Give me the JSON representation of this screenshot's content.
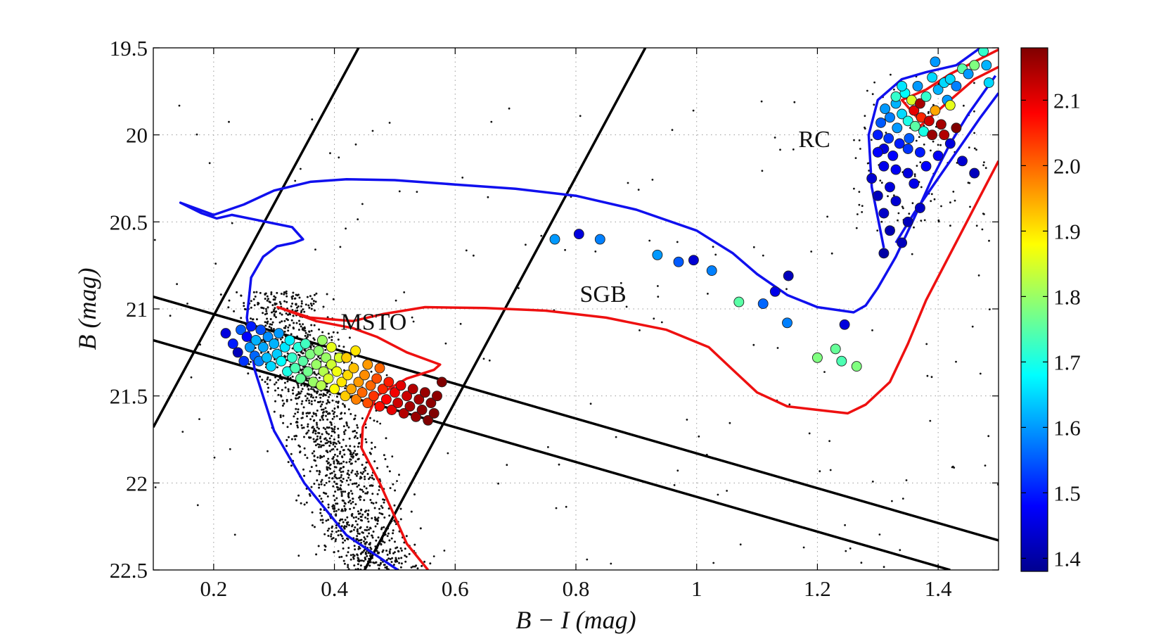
{
  "chart_data": {
    "type": "scatter",
    "title": "",
    "xlabel": "B − I (mag)",
    "ylabel": "B (mag)",
    "xlim": [
      0.1,
      1.5
    ],
    "ylim": [
      22.5,
      19.5
    ],
    "y_inverted": true,
    "grid": "dotted",
    "x_ticks": [
      {
        "value": 0.2,
        "label": "0.2"
      },
      {
        "value": 0.4,
        "label": "0.4"
      },
      {
        "value": 0.6,
        "label": "0.6"
      },
      {
        "value": 0.8,
        "label": "0.8"
      },
      {
        "value": 1.0,
        "label": "1"
      },
      {
        "value": 1.2,
        "label": "1.2"
      },
      {
        "value": 1.4,
        "label": "1.4"
      }
    ],
    "y_ticks": [
      {
        "value": 19.5,
        "label": "19.5"
      },
      {
        "value": 20.0,
        "label": "20"
      },
      {
        "value": 20.5,
        "label": "20.5"
      },
      {
        "value": 21.0,
        "label": "21"
      },
      {
        "value": 21.5,
        "label": "21.5"
      },
      {
        "value": 22.0,
        "label": "22"
      },
      {
        "value": 22.5,
        "label": "22.5"
      }
    ],
    "colorbar": {
      "range": [
        1.38,
        2.18
      ],
      "ticks": [
        {
          "value": 1.4,
          "label": "1.4"
        },
        {
          "value": 1.5,
          "label": "1.5"
        },
        {
          "value": 1.6,
          "label": "1.6"
        },
        {
          "value": 1.7,
          "label": "1.7"
        },
        {
          "value": 1.8,
          "label": "1.8"
        },
        {
          "value": 1.9,
          "label": "1.9"
        },
        {
          "value": 2.0,
          "label": "2.0"
        },
        {
          "value": 2.1,
          "label": "2.1"
        }
      ],
      "colormap": [
        "#00008f",
        "#0000ff",
        "#0080ff",
        "#00ffff",
        "#80ff80",
        "#ffff00",
        "#ff8000",
        "#ff0000",
        "#800000"
      ]
    },
    "annotations": [
      {
        "text": "MSTO",
        "x": 0.465,
        "y": 21.12
      },
      {
        "text": "SGB",
        "x": 0.845,
        "y": 20.96
      },
      {
        "text": "RC",
        "x": 1.195,
        "y": 20.07
      }
    ],
    "isochrones": [
      {
        "name": "blue",
        "color": "#1010ee",
        "points": [
          [
            0.505,
            22.5
          ],
          [
            0.42,
            22.3
          ],
          [
            0.35,
            22.0
          ],
          [
            0.3,
            21.7
          ],
          [
            0.268,
            21.35
          ],
          [
            0.255,
            21.05
          ],
          [
            0.262,
            20.82
          ],
          [
            0.282,
            20.7
          ],
          [
            0.305,
            20.64
          ],
          [
            0.333,
            20.62
          ],
          [
            0.348,
            20.6
          ],
          [
            0.33,
            20.53
          ],
          [
            0.23,
            20.46
          ],
          [
            0.205,
            20.48
          ],
          [
            0.18,
            20.45
          ],
          [
            0.145,
            20.39
          ],
          [
            0.2,
            20.46
          ],
          [
            0.25,
            20.4
          ],
          [
            0.3,
            20.32
          ],
          [
            0.36,
            20.27
          ],
          [
            0.42,
            20.255
          ],
          [
            0.5,
            20.26
          ],
          [
            0.6,
            20.285
          ],
          [
            0.7,
            20.31
          ],
          [
            0.8,
            20.35
          ],
          [
            0.9,
            20.43
          ],
          [
            1.0,
            20.55
          ],
          [
            1.06,
            20.68
          ],
          [
            1.1,
            20.8
          ],
          [
            1.15,
            20.92
          ],
          [
            1.2,
            20.99
          ],
          [
            1.26,
            21.02
          ],
          [
            1.28,
            20.98
          ],
          [
            1.3,
            20.88
          ],
          [
            1.33,
            20.7
          ],
          [
            1.36,
            20.48
          ],
          [
            1.39,
            20.25
          ],
          [
            1.42,
            20.05
          ],
          [
            1.45,
            19.88
          ],
          [
            1.495,
            19.66
          ]
        ]
      },
      {
        "name": "blue-RGB",
        "color": "#1010ee",
        "points": [
          [
            1.31,
            20.65
          ],
          [
            1.29,
            20.3
          ],
          [
            1.285,
            20.0
          ],
          [
            1.3,
            19.8
          ],
          [
            1.34,
            19.68
          ],
          [
            1.38,
            19.64
          ],
          [
            1.43,
            19.6
          ],
          [
            1.47,
            19.5
          ]
        ]
      },
      {
        "name": "blue-RGB-2",
        "color": "#1010ee",
        "points": [
          [
            1.33,
            20.62
          ],
          [
            1.36,
            20.45
          ],
          [
            1.4,
            20.25
          ],
          [
            1.44,
            20.05
          ],
          [
            1.47,
            19.9
          ],
          [
            1.5,
            19.76
          ]
        ]
      },
      {
        "name": "red",
        "color": "#ee1010",
        "points": [
          [
            0.555,
            22.5
          ],
          [
            0.52,
            22.35
          ],
          [
            0.475,
            22.0
          ],
          [
            0.445,
            21.8
          ],
          [
            0.447,
            21.68
          ],
          [
            0.47,
            21.5
          ],
          [
            0.52,
            21.4
          ],
          [
            0.565,
            21.35
          ],
          [
            0.575,
            21.32
          ],
          [
            0.52,
            21.25
          ],
          [
            0.47,
            21.16
          ],
          [
            0.43,
            21.11
          ],
          [
            0.37,
            21.07
          ],
          [
            0.306,
            20.99
          ],
          [
            0.36,
            21.05
          ],
          [
            0.43,
            21.07
          ],
          [
            0.48,
            21.03
          ],
          [
            0.55,
            20.99
          ],
          [
            0.65,
            20.995
          ],
          [
            0.75,
            21.01
          ],
          [
            0.85,
            21.05
          ],
          [
            0.95,
            21.12
          ],
          [
            1.02,
            21.22
          ],
          [
            1.06,
            21.35
          ],
          [
            1.1,
            21.48
          ],
          [
            1.15,
            21.56
          ],
          [
            1.2,
            21.58
          ],
          [
            1.25,
            21.6
          ],
          [
            1.28,
            21.55
          ],
          [
            1.32,
            21.42
          ],
          [
            1.35,
            21.2
          ],
          [
            1.38,
            20.95
          ],
          [
            1.41,
            20.75
          ],
          [
            1.44,
            20.55
          ],
          [
            1.47,
            20.35
          ],
          [
            1.5,
            20.15
          ]
        ]
      },
      {
        "name": "red-RGB",
        "color": "#ee1010",
        "points": [
          [
            1.37,
            19.92
          ],
          [
            1.34,
            19.8
          ],
          [
            1.38,
            19.74
          ],
          [
            1.42,
            19.65
          ],
          [
            1.46,
            19.58
          ],
          [
            1.5,
            19.51
          ]
        ]
      },
      {
        "name": "red-RGB-2",
        "color": "#ee1010",
        "points": [
          [
            1.37,
            19.95
          ],
          [
            1.42,
            19.8
          ],
          [
            1.46,
            19.68
          ],
          [
            1.5,
            19.61
          ]
        ]
      }
    ],
    "selection_lines": [
      {
        "name": "diag-left",
        "points": [
          [
            0.1,
            21.68
          ],
          [
            0.44,
            19.5
          ]
        ]
      },
      {
        "name": "diag-right",
        "points": [
          [
            0.45,
            22.5
          ],
          [
            0.915,
            19.5
          ]
        ]
      },
      {
        "name": "band-top",
        "points": [
          [
            0.1,
            20.93
          ],
          [
            1.5,
            22.33
          ]
        ]
      },
      {
        "name": "band-bottom",
        "points": [
          [
            0.1,
            21.18
          ],
          [
            1.42,
            22.5
          ]
        ]
      }
    ],
    "colored_stars": [
      [
        0.22,
        21.14,
        1.45
      ],
      [
        0.232,
        21.2,
        1.5
      ],
      [
        0.24,
        21.25,
        1.42
      ],
      [
        0.245,
        21.12,
        1.55
      ],
      [
        0.25,
        21.3,
        1.52
      ],
      [
        0.255,
        21.16,
        1.48
      ],
      [
        0.26,
        21.22,
        1.6
      ],
      [
        0.262,
        21.1,
        1.5
      ],
      [
        0.268,
        21.27,
        1.56
      ],
      [
        0.27,
        21.18,
        1.62
      ],
      [
        0.275,
        21.3,
        1.58
      ],
      [
        0.278,
        21.12,
        1.54
      ],
      [
        0.282,
        21.22,
        1.61
      ],
      [
        0.288,
        21.28,
        1.63
      ],
      [
        0.29,
        21.16,
        1.59
      ],
      [
        0.295,
        21.33,
        1.65
      ],
      [
        0.3,
        21.2,
        1.62
      ],
      [
        0.305,
        21.26,
        1.64
      ],
      [
        0.308,
        21.14,
        1.6
      ],
      [
        0.312,
        21.3,
        1.68
      ],
      [
        0.318,
        21.22,
        1.66
      ],
      [
        0.322,
        21.36,
        1.7
      ],
      [
        0.326,
        21.18,
        1.67
      ],
      [
        0.33,
        21.28,
        1.72
      ],
      [
        0.335,
        21.34,
        1.74
      ],
      [
        0.34,
        21.22,
        1.71
      ],
      [
        0.344,
        21.4,
        1.76
      ],
      [
        0.348,
        21.3,
        1.75
      ],
      [
        0.352,
        21.2,
        1.73
      ],
      [
        0.356,
        21.36,
        1.77
      ],
      [
        0.36,
        21.26,
        1.78
      ],
      [
        0.365,
        21.42,
        1.8
      ],
      [
        0.37,
        21.32,
        1.8
      ],
      [
        0.374,
        21.24,
        1.79
      ],
      [
        0.378,
        21.44,
        1.82
      ],
      [
        0.382,
        21.36,
        1.82
      ],
      [
        0.386,
        21.28,
        1.8
      ],
      [
        0.39,
        21.4,
        1.85
      ],
      [
        0.395,
        21.32,
        1.84
      ],
      [
        0.4,
        21.46,
        1.88
      ],
      [
        0.404,
        21.36,
        1.87
      ],
      [
        0.408,
        21.28,
        1.85
      ],
      [
        0.412,
        21.42,
        1.9
      ],
      [
        0.418,
        21.5,
        1.92
      ],
      [
        0.422,
        21.38,
        1.91
      ],
      [
        0.428,
        21.46,
        1.95
      ],
      [
        0.432,
        21.34,
        1.93
      ],
      [
        0.436,
        21.52,
        1.98
      ],
      [
        0.44,
        21.42,
        1.96
      ],
      [
        0.446,
        21.48,
        2.0
      ],
      [
        0.45,
        21.38,
        1.97
      ],
      [
        0.455,
        21.54,
        2.02
      ],
      [
        0.46,
        21.44,
        2.0
      ],
      [
        0.465,
        21.5,
        2.04
      ],
      [
        0.47,
        21.4,
        2.02
      ],
      [
        0.475,
        21.56,
        2.07
      ],
      [
        0.48,
        21.46,
        2.05
      ],
      [
        0.486,
        21.52,
        2.08
      ],
      [
        0.49,
        21.42,
        2.06
      ],
      [
        0.495,
        21.58,
        2.1
      ],
      [
        0.5,
        21.48,
        2.09
      ],
      [
        0.505,
        21.54,
        2.12
      ],
      [
        0.51,
        21.44,
        2.1
      ],
      [
        0.515,
        21.6,
        2.14
      ],
      [
        0.52,
        21.5,
        2.12
      ],
      [
        0.525,
        21.56,
        2.15
      ],
      [
        0.53,
        21.46,
        2.14
      ],
      [
        0.535,
        21.62,
        2.16
      ],
      [
        0.54,
        21.52,
        2.15
      ],
      [
        0.545,
        21.58,
        2.17
      ],
      [
        0.55,
        21.48,
        2.16
      ],
      [
        0.555,
        21.64,
        2.18
      ],
      [
        0.56,
        21.54,
        2.17
      ],
      [
        0.565,
        21.6,
        2.18
      ],
      [
        0.57,
        21.5,
        2.17
      ],
      [
        0.578,
        21.42,
        2.18
      ],
      [
        0.38,
        21.18,
        1.8
      ],
      [
        0.395,
        21.22,
        1.86
      ],
      [
        0.42,
        21.28,
        1.92
      ],
      [
        0.435,
        21.24,
        1.9
      ],
      [
        0.455,
        21.32,
        1.96
      ],
      [
        0.475,
        21.34,
        2.0
      ],
      [
        0.765,
        20.6,
        1.6
      ],
      [
        0.805,
        20.57,
        1.45
      ],
      [
        0.84,
        20.6,
        1.58
      ],
      [
        0.935,
        20.69,
        1.6
      ],
      [
        0.97,
        20.73,
        1.55
      ],
      [
        0.995,
        20.72,
        1.44
      ],
      [
        1.025,
        20.78,
        1.58
      ],
      [
        1.07,
        20.96,
        1.75
      ],
      [
        1.11,
        20.97,
        1.56
      ],
      [
        1.13,
        20.9,
        1.46
      ],
      [
        1.15,
        21.08,
        1.58
      ],
      [
        1.152,
        20.81,
        1.42
      ],
      [
        1.245,
        21.09,
        1.45
      ],
      [
        1.2,
        21.28,
        1.78
      ],
      [
        1.23,
        21.23,
        1.76
      ],
      [
        1.24,
        21.3,
        1.74
      ],
      [
        1.265,
        21.33,
        1.78
      ],
      [
        1.3,
        20.0,
        1.5
      ],
      [
        1.305,
        19.93,
        1.55
      ],
      [
        1.31,
        20.08,
        1.45
      ],
      [
        1.312,
        19.85,
        1.6
      ],
      [
        1.318,
        20.02,
        1.52
      ],
      [
        1.32,
        19.9,
        1.58
      ],
      [
        1.325,
        20.12,
        1.48
      ],
      [
        1.33,
        19.82,
        1.62
      ],
      [
        1.332,
        19.96,
        1.6
      ],
      [
        1.336,
        20.05,
        1.5
      ],
      [
        1.34,
        19.88,
        1.65
      ],
      [
        1.345,
        19.76,
        1.68
      ],
      [
        1.35,
        19.92,
        1.7
      ],
      [
        1.352,
        20.02,
        1.55
      ],
      [
        1.356,
        19.8,
        1.85
      ],
      [
        1.36,
        19.86,
        2.1
      ],
      [
        1.362,
        19.95,
        1.75
      ],
      [
        1.366,
        19.72,
        1.6
      ],
      [
        1.37,
        19.82,
        2.15
      ],
      [
        1.372,
        19.9,
        2.05
      ],
      [
        1.376,
        19.98,
        1.7
      ],
      [
        1.38,
        19.78,
        1.72
      ],
      [
        1.385,
        19.92,
        2.12
      ],
      [
        1.39,
        20.0,
        2.16
      ],
      [
        1.395,
        19.86,
        1.95
      ],
      [
        1.4,
        19.74,
        1.62
      ],
      [
        1.405,
        19.94,
        2.15
      ],
      [
        1.41,
        19.7,
        1.65
      ],
      [
        1.415,
        19.8,
        1.6
      ],
      [
        1.42,
        19.68,
        1.65
      ],
      [
        1.43,
        19.72,
        1.58
      ],
      [
        1.44,
        19.62,
        1.75
      ],
      [
        1.45,
        19.65,
        1.6
      ],
      [
        1.46,
        19.6,
        1.78
      ],
      [
        1.475,
        19.52,
        1.72
      ],
      [
        1.48,
        19.6,
        1.62
      ],
      [
        1.484,
        19.7,
        1.65
      ],
      [
        1.395,
        19.58,
        1.6
      ],
      [
        1.39,
        19.67,
        1.65
      ],
      [
        1.42,
        19.83,
        1.86
      ],
      [
        1.43,
        19.96,
        2.18
      ],
      [
        1.41,
        20.0,
        2.14
      ],
      [
        1.3,
        20.1,
        1.48
      ],
      [
        1.31,
        20.18,
        1.46
      ],
      [
        1.29,
        20.25,
        1.44
      ],
      [
        1.32,
        20.3,
        1.45
      ],
      [
        1.33,
        20.2,
        1.47
      ],
      [
        1.35,
        20.22,
        1.45
      ],
      [
        1.3,
        20.35,
        1.42
      ],
      [
        1.31,
        20.45,
        1.43
      ],
      [
        1.33,
        20.38,
        1.44
      ],
      [
        1.35,
        20.5,
        1.42
      ],
      [
        1.37,
        20.42,
        1.43
      ],
      [
        1.32,
        20.55,
        1.41
      ],
      [
        1.34,
        20.62,
        1.42
      ],
      [
        1.31,
        20.68,
        1.4
      ],
      [
        1.36,
        20.28,
        1.46
      ],
      [
        1.38,
        20.18,
        1.48
      ],
      [
        1.4,
        20.12,
        1.47
      ],
      [
        1.42,
        20.05,
        1.45
      ],
      [
        1.44,
        20.15,
        1.44
      ],
      [
        1.46,
        20.22,
        1.42
      ],
      [
        1.35,
        20.08,
        1.52
      ],
      [
        1.37,
        20.1,
        1.5
      ],
      [
        1.33,
        19.78,
        1.72
      ],
      [
        1.34,
        19.72,
        1.66
      ]
    ]
  }
}
